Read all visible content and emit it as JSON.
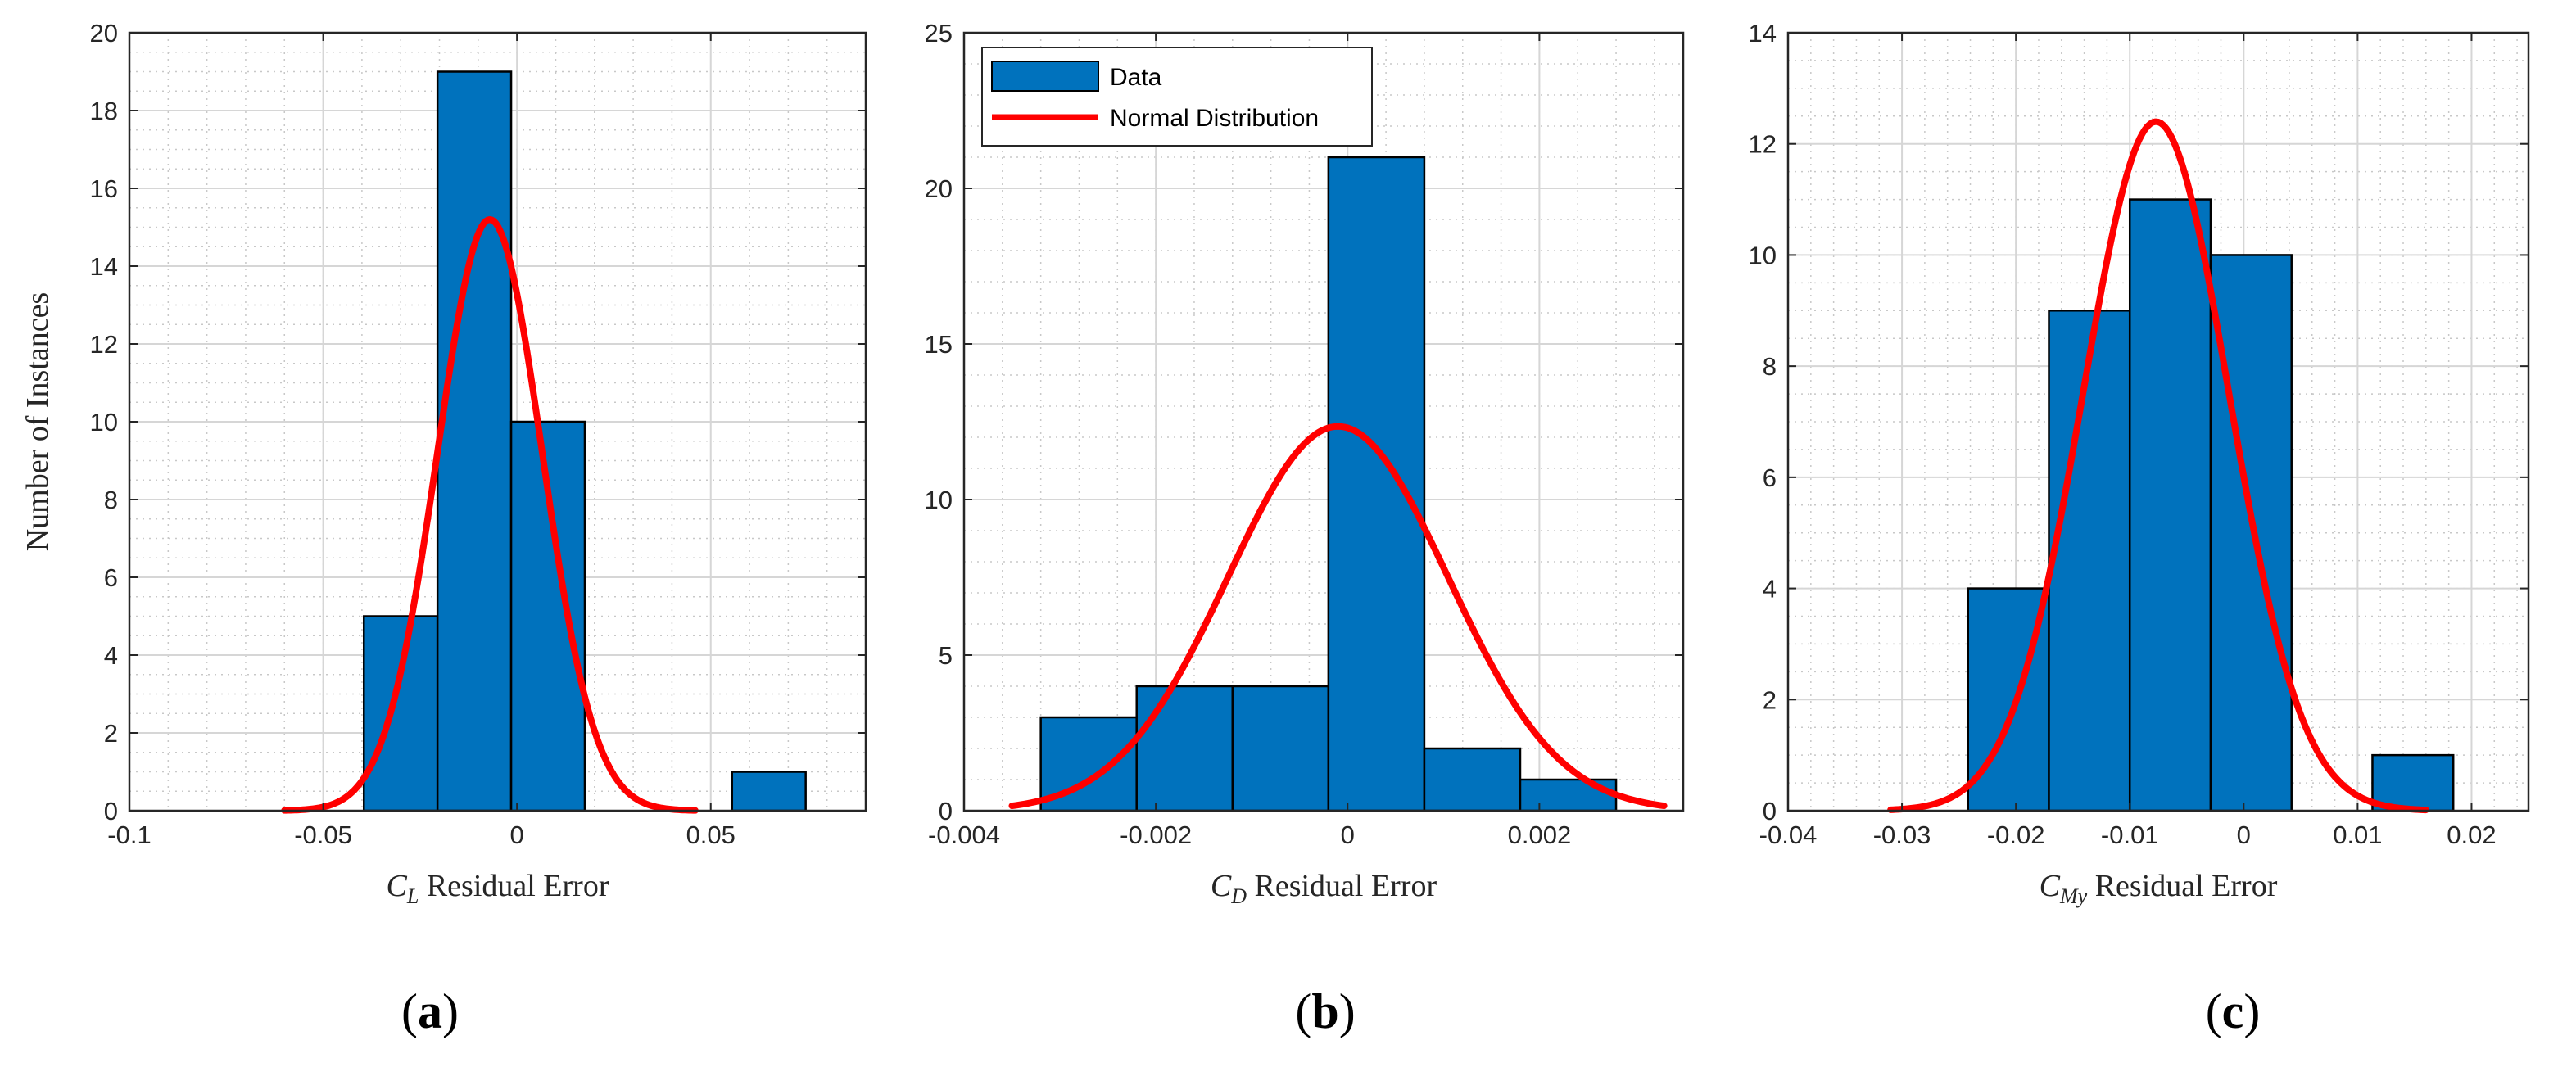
{
  "colors": {
    "bar": "#0072BD",
    "bar_edge": "#000000",
    "fit": "#FF0000",
    "grid_major": "#D6D6D6",
    "grid_minor": "#C8C8C8",
    "axis": "#262626"
  },
  "legend": {
    "items": [
      "Data",
      "Normal Distribution"
    ]
  },
  "chart_data": [
    {
      "type": "bar",
      "panel": "(a)",
      "xlabel_symbol": "C",
      "xlabel_sub": "L",
      "xlabel_text": " Residual Error",
      "ylabel": "Number of Instances",
      "xlim": [
        -0.1,
        0.09
      ],
      "ylim": [
        0,
        20
      ],
      "xticks": [
        -0.1,
        -0.05,
        0,
        0.05
      ],
      "xtick_labels": [
        "-0.1",
        "-0.05",
        "0",
        "0.05"
      ],
      "xminor_step": 0.01,
      "yticks": [
        0,
        2,
        4,
        6,
        8,
        10,
        12,
        14,
        16,
        18,
        20
      ],
      "ytick_labels": [
        "0",
        "2",
        "4",
        "6",
        "8",
        "10",
        "12",
        "14",
        "16",
        "18",
        "20"
      ],
      "yminor_step": 0.5,
      "bins": [
        {
          "x0": -0.0395,
          "x1": -0.0205,
          "count": 5
        },
        {
          "x0": -0.0205,
          "x1": -0.0015,
          "count": 19
        },
        {
          "x0": -0.0015,
          "x1": 0.0175,
          "count": 10
        },
        {
          "x0": 0.0175,
          "x1": 0.0365,
          "count": 0
        },
        {
          "x0": 0.0365,
          "x1": 0.0555,
          "count": 0
        },
        {
          "x0": 0.0555,
          "x1": 0.0745,
          "count": 1
        }
      ],
      "fit": {
        "mean": -0.007,
        "sigma": 0.0135,
        "peak": 15.2,
        "x_range": [
          -0.06,
          0.046
        ]
      },
      "show_legend": false
    },
    {
      "type": "bar",
      "panel": "(b)",
      "xlabel_symbol": "C",
      "xlabel_sub": "D",
      "xlabel_text": " Residual Error",
      "ylabel": "",
      "xlim": [
        -0.004,
        0.0035
      ],
      "ylim": [
        0,
        25
      ],
      "xticks": [
        -0.004,
        -0.002,
        0,
        0.002
      ],
      "xtick_labels": [
        "-0.004",
        "-0.002",
        "0",
        "0.002"
      ],
      "xminor_step": 0.0004,
      "yticks": [
        0,
        5,
        10,
        15,
        20,
        25
      ],
      "ytick_labels": [
        "0",
        "5",
        "10",
        "15",
        "20",
        "25"
      ],
      "yminor_step": 1,
      "bins": [
        {
          "x0": -0.0032,
          "x1": -0.0022,
          "count": 3
        },
        {
          "x0": -0.0022,
          "x1": -0.0012,
          "count": 4
        },
        {
          "x0": -0.0012,
          "x1": -0.0002,
          "count": 4
        },
        {
          "x0": -0.0002,
          "x1": 0.0008,
          "count": 21
        },
        {
          "x0": 0.0008,
          "x1": 0.0018,
          "count": 2
        },
        {
          "x0": 0.0018,
          "x1": 0.0028,
          "count": 1
        }
      ],
      "fit": {
        "mean": -0.0001,
        "sigma": 0.00115,
        "peak": 12.35,
        "x_range": [
          -0.0035,
          0.0033
        ]
      },
      "show_legend": true
    },
    {
      "type": "bar",
      "panel": "(c)",
      "xlabel_symbol": "C",
      "xlabel_sub": "My",
      "xlabel_text": " Residual Error",
      "ylabel": "",
      "xlim": [
        -0.04,
        0.025
      ],
      "ylim": [
        0,
        14
      ],
      "xticks": [
        -0.04,
        -0.03,
        -0.02,
        -0.01,
        0,
        0.01,
        0.02
      ],
      "xtick_labels": [
        "-0.04",
        "-0.03",
        "-0.02",
        "-0.01",
        "0",
        "0.01",
        "0.02"
      ],
      "xminor_step": 0.002,
      "yticks": [
        0,
        2,
        4,
        6,
        8,
        10,
        12,
        14
      ],
      "ytick_labels": [
        "0",
        "2",
        "4",
        "6",
        "8",
        "10",
        "12",
        "14"
      ],
      "yminor_step": 0.5,
      "bins": [
        {
          "x0": -0.0242,
          "x1": -0.0171,
          "count": 4
        },
        {
          "x0": -0.0171,
          "x1": -0.01,
          "count": 9
        },
        {
          "x0": -0.01,
          "x1": -0.0029,
          "count": 11
        },
        {
          "x0": -0.0029,
          "x1": 0.0042,
          "count": 10
        },
        {
          "x0": 0.0042,
          "x1": 0.0113,
          "count": 0
        },
        {
          "x0": 0.0113,
          "x1": 0.0184,
          "count": 1
        }
      ],
      "fit": {
        "mean": -0.0077,
        "sigma": 0.0064,
        "peak": 12.4,
        "x_range": [
          -0.031,
          0.016
        ]
      },
      "show_legend": false
    }
  ]
}
